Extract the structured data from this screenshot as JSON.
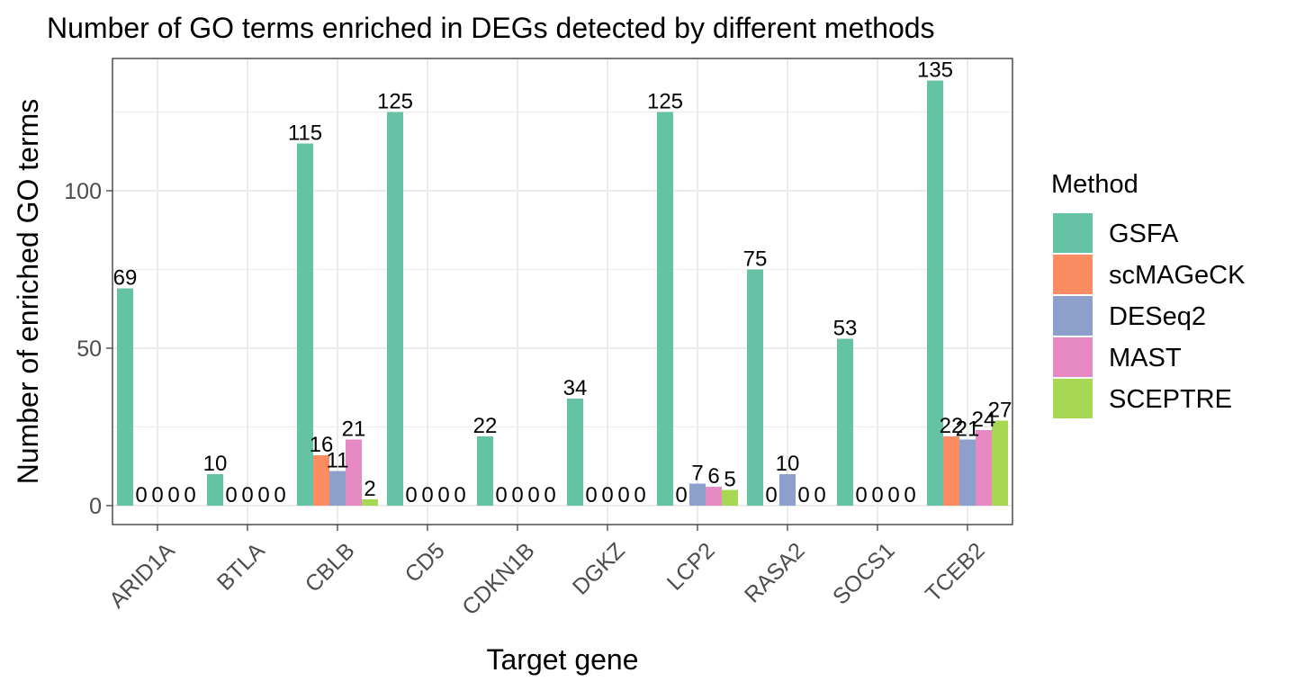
{
  "chart_data": {
    "type": "bar",
    "title": "Number of GO terms enriched in DEGs detected by different methods",
    "xlabel": "Target gene",
    "ylabel": "Number of enriched GO terms",
    "categories": [
      "ARID1A",
      "BTLA",
      "CBLB",
      "CD5",
      "CDKN1B",
      "DGKZ",
      "LCP2",
      "RASA2",
      "SOCS1",
      "TCEB2"
    ],
    "ylim": [
      -6,
      142
    ],
    "yticks": [
      0,
      50,
      100
    ],
    "grid": true,
    "legend": {
      "title": "Method",
      "position": "right"
    },
    "series": [
      {
        "name": "GSFA",
        "color": "#66C2A5",
        "values": [
          69,
          10,
          115,
          125,
          22,
          34,
          125,
          75,
          53,
          135
        ]
      },
      {
        "name": "scMAGeCK",
        "color": "#FC8D62",
        "values": [
          0,
          0,
          16,
          0,
          0,
          0,
          0,
          0,
          0,
          22
        ]
      },
      {
        "name": "DESeq2",
        "color": "#8DA0CB",
        "values": [
          0,
          0,
          11,
          0,
          0,
          0,
          7,
          10,
          0,
          21
        ]
      },
      {
        "name": "MAST",
        "color": "#E78AC3",
        "values": [
          0,
          0,
          21,
          0,
          0,
          0,
          6,
          0,
          0,
          24
        ]
      },
      {
        "name": "SCEPTRE",
        "color": "#A6D854",
        "values": [
          0,
          0,
          2,
          0,
          0,
          0,
          5,
          0,
          0,
          27
        ]
      }
    ]
  }
}
